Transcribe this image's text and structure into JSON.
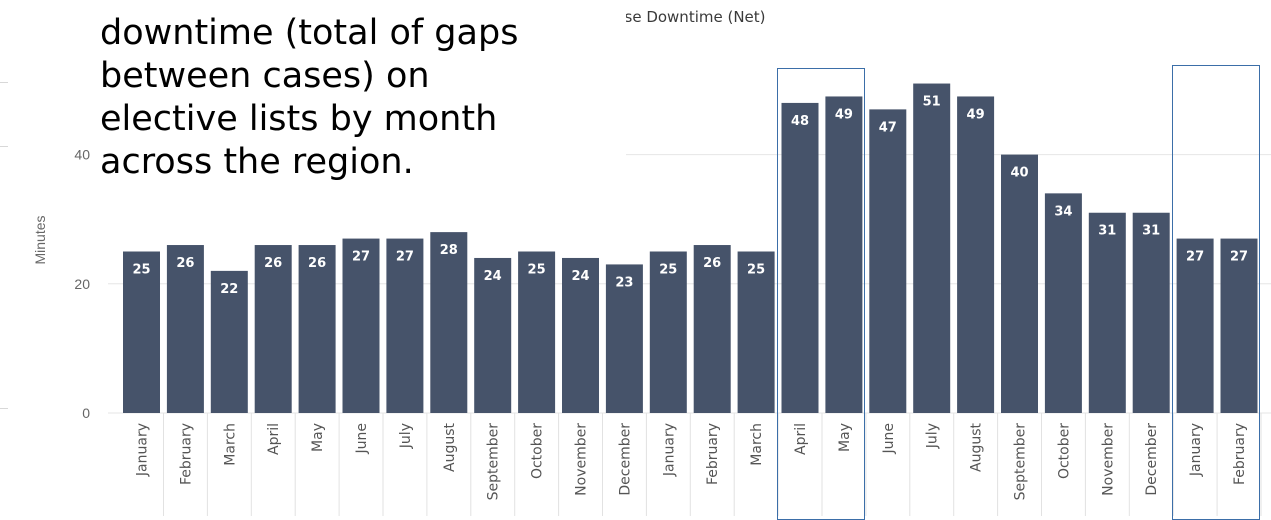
{
  "overlay_lines": [
    "downtime (total of gaps",
    "between cases) on",
    "elective lists by month",
    "across the region."
  ],
  "chart_title": "ercase Downtime (Net)",
  "colors": {
    "bar": "#46536a",
    "bar_label": "#ffffff",
    "gridline": "#e6e6e6",
    "highlight_box": "#3b6ea8"
  },
  "chart_data": {
    "type": "bar",
    "title": "ercase Downtime (Net)",
    "xlabel": "",
    "ylabel": "Minutes",
    "ylim": [
      0,
      60
    ],
    "yticks": [
      "0",
      "20",
      "40"
    ],
    "grid": true,
    "categories": [
      "January",
      "February",
      "March",
      "April",
      "May",
      "June",
      "July",
      "August",
      "September",
      "October",
      "November",
      "December",
      "January",
      "February",
      "March",
      "April",
      "May",
      "June",
      "July",
      "August",
      "September",
      "October",
      "November",
      "December",
      "January",
      "February"
    ],
    "values": [
      25,
      26,
      22,
      26,
      26,
      27,
      27,
      28,
      24,
      25,
      24,
      23,
      25,
      26,
      25,
      48,
      49,
      47,
      51,
      49,
      40,
      34,
      31,
      31,
      27,
      27
    ],
    "data_labels": [
      "25",
      "26",
      "22",
      "26",
      "26",
      "27",
      "27",
      "28",
      "24",
      "25",
      "24",
      "23",
      "25",
      "26",
      "25",
      "48",
      "49",
      "47",
      "51",
      "49",
      "40",
      "34",
      "31",
      "31",
      "27",
      "27"
    ],
    "highlighted_ranges": [
      [
        15,
        16
      ],
      [
        24,
        25
      ]
    ]
  }
}
